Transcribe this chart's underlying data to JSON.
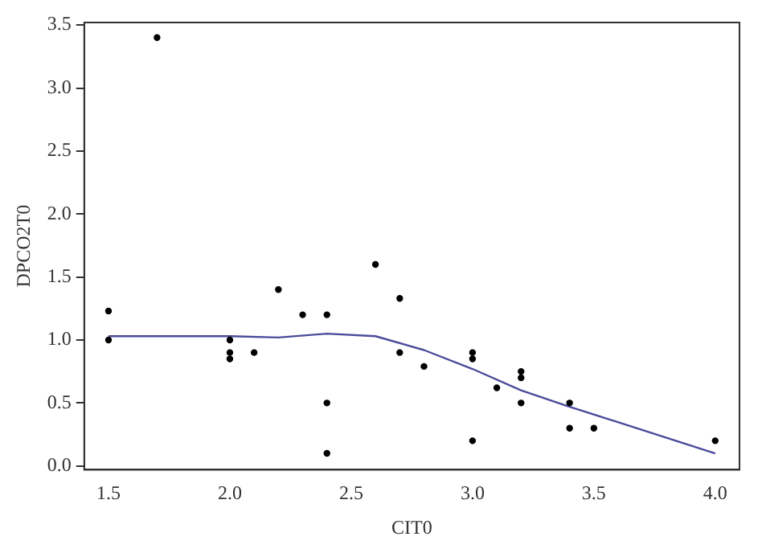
{
  "chart_data": {
    "type": "scatter",
    "xlabel": "CIT0",
    "ylabel": "DPCO2T0",
    "xlim": [
      1.4,
      4.1
    ],
    "ylim": [
      -0.03,
      3.52
    ],
    "xticks": [
      {
        "value": 1.5,
        "label": "1.5"
      },
      {
        "value": 2,
        "label": "2.0"
      },
      {
        "value": 2.5,
        "label": "2.5"
      },
      {
        "value": 3,
        "label": "3.0"
      },
      {
        "value": 3.5,
        "label": "3.5"
      },
      {
        "value": 4,
        "label": "4.0"
      }
    ],
    "yticks": [
      {
        "value": 0,
        "label": "0.0"
      },
      {
        "value": 0.5,
        "label": "0.5"
      },
      {
        "value": 1,
        "label": "1.0"
      },
      {
        "value": 1.5,
        "label": "1.5"
      },
      {
        "value": 2,
        "label": "2.0"
      },
      {
        "value": 2.5,
        "label": "2.5"
      },
      {
        "value": 3,
        "label": "3.0"
      },
      {
        "value": 3.5,
        "label": "3.5"
      }
    ],
    "grid": false,
    "legend": false,
    "series": [
      {
        "type": "scatter",
        "color": "#000000",
        "marker": "circle",
        "x": [
          1.5,
          1.5,
          1.7,
          2.0,
          2.0,
          2.0,
          2.1,
          2.2,
          2.3,
          2.4,
          2.4,
          2.4,
          2.6,
          2.7,
          2.7,
          2.8,
          3.0,
          3.0,
          3.0,
          3.1,
          3.2,
          3.2,
          3.2,
          3.4,
          3.4,
          3.5,
          4.0
        ],
        "values": [
          1.23,
          1.0,
          3.4,
          1.0,
          0.9,
          0.85,
          0.9,
          1.4,
          1.2,
          1.2,
          0.5,
          0.1,
          1.6,
          1.33,
          0.9,
          0.79,
          0.9,
          0.85,
          0.2,
          0.62,
          0.75,
          0.7,
          0.5,
          0.5,
          0.3,
          0.3,
          0.2
        ]
      },
      {
        "type": "line",
        "color": "#4b4b9b",
        "marker": "none",
        "line_style": "solid",
        "x": [
          1.5,
          2.0,
          2.2,
          2.4,
          2.6,
          2.8,
          3.0,
          3.2,
          3.4,
          4.0
        ],
        "values": [
          1.03,
          1.03,
          1.02,
          1.05,
          1.03,
          0.92,
          0.77,
          0.6,
          0.47,
          0.1
        ]
      }
    ]
  }
}
